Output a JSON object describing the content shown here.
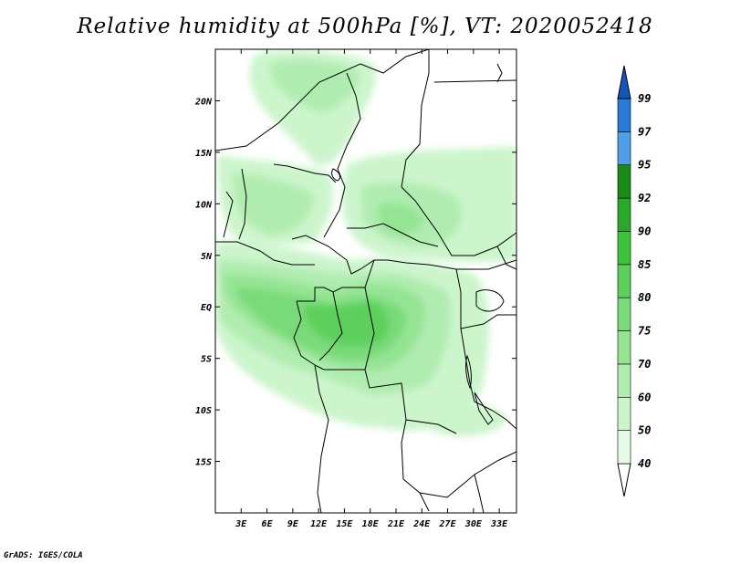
{
  "title": "Relative humidity at 500hPa [%], VT: 2020052418",
  "credit": "GrADS: IGES/COLA",
  "map": {
    "lon_range": [
      0,
      35
    ],
    "lat_range": [
      -20,
      25
    ],
    "lat_ticks": [
      {
        "value": 20,
        "label": "20N"
      },
      {
        "value": 15,
        "label": "15N"
      },
      {
        "value": 10,
        "label": "10N"
      },
      {
        "value": 5,
        "label": "5N"
      },
      {
        "value": 0,
        "label": "EQ"
      },
      {
        "value": -5,
        "label": "5S"
      },
      {
        "value": -10,
        "label": "10S"
      },
      {
        "value": -15,
        "label": "15S"
      }
    ],
    "lon_ticks": [
      {
        "value": 3,
        "label": "3E"
      },
      {
        "value": 6,
        "label": "6E"
      },
      {
        "value": 9,
        "label": "9E"
      },
      {
        "value": 12,
        "label": "12E"
      },
      {
        "value": 15,
        "label": "15E"
      },
      {
        "value": 18,
        "label": "18E"
      },
      {
        "value": 21,
        "label": "21E"
      },
      {
        "value": 24,
        "label": "24E"
      },
      {
        "value": 27,
        "label": "27E"
      },
      {
        "value": 30,
        "label": "30E"
      },
      {
        "value": 33,
        "label": "33E"
      }
    ]
  },
  "colorbar": {
    "levels": [
      "40",
      "50",
      "60",
      "70",
      "75",
      "80",
      "85",
      "90",
      "92",
      "95",
      "97",
      "99"
    ],
    "colors": [
      "#ffffff",
      "#e6fbe6",
      "#ccf5cc",
      "#b0ecb0",
      "#94e494",
      "#78da78",
      "#5ccf5c",
      "#3ec33e",
      "#2aa82a",
      "#1a8c1a",
      "#4f9ee8",
      "#2a7ad8",
      "#1656b8"
    ]
  }
}
